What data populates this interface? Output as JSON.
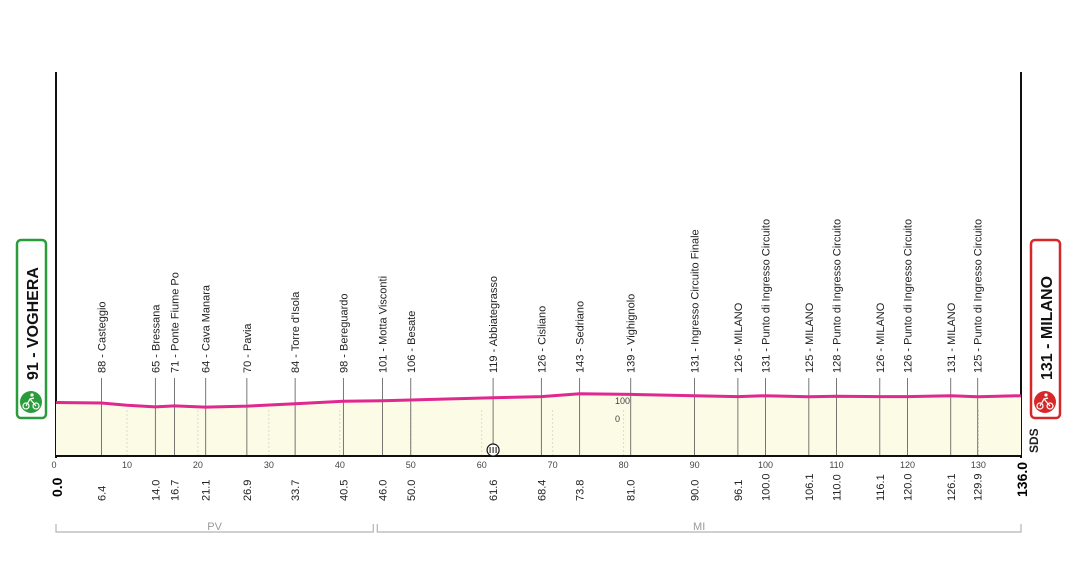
{
  "colors": {
    "profile_line": "#e0288f",
    "profile_fill": "#fbfbe6",
    "start_badge": "#2a9d3a",
    "finish_badge": "#d62828"
  },
  "start": {
    "label": "91 - VOGHERA",
    "icon": "cyclist-icon"
  },
  "finish": {
    "label": "131 - MILANO",
    "icon": "cyclist-icon"
  },
  "logo": "SDS",
  "alt_labels": {
    "upper": "100",
    "lower": "0"
  },
  "provinces": [
    {
      "name": "PV",
      "from_km": 0,
      "to_km": 45
    },
    {
      "name": "MI",
      "from_km": 45,
      "to_km": 136
    }
  ],
  "chart_data": {
    "type": "area",
    "title": "",
    "xlabel": "",
    "ylabel": "",
    "xlim": [
      0,
      136
    ],
    "x_ticks": [
      10,
      20,
      30,
      40,
      50,
      60,
      70,
      80,
      90,
      100,
      110,
      120,
      130
    ],
    "x_start_label": "0.0",
    "x_end_label": "136.0",
    "series": [
      {
        "x": [
          0,
          6.4,
          10,
          14.0,
          16.7,
          21.1,
          26.9,
          33.7,
          40.5,
          46.0,
          50.0,
          55,
          61.6,
          68.4,
          73.8,
          81.0,
          90.0,
          96.1,
          100.0,
          106.1,
          110.0,
          116.1,
          120.0,
          126.1,
          129.9,
          136.0
        ],
        "y": [
          91,
          88,
          75,
          65,
          71,
          64,
          70,
          84,
          98,
          101,
          106,
          112,
          119,
          126,
          143,
          139,
          131,
          126,
          131,
          125,
          128,
          126,
          126,
          131,
          125,
          131
        ]
      }
    ],
    "waypoints": [
      {
        "km": "6.4",
        "label": "88 - Casteggio"
      },
      {
        "km": "14.0",
        "label": "65 - Bressana"
      },
      {
        "km": "16.7",
        "label": "71 - Ponte Fiume Po"
      },
      {
        "km": "21.1",
        "label": "64 - Cava Manara"
      },
      {
        "km": "26.9",
        "label": "70 - Pavia"
      },
      {
        "km": "33.7",
        "label": "84 - Torre d'Isola"
      },
      {
        "km": "40.5",
        "label": "98 - Bereguardo"
      },
      {
        "km": "46.0",
        "label": "101 - Motta Visconti"
      },
      {
        "km": "50.0",
        "label": "106 - Besate"
      },
      {
        "km": "61.6",
        "label": "119 - Abbiategrasso"
      },
      {
        "km": "68.4",
        "label": "126 - Cisliano"
      },
      {
        "km": "73.8",
        "label": "143 - Sedriano"
      },
      {
        "km": "81.0",
        "label": "139 - Vighignolo"
      },
      {
        "km": "90.0",
        "label": "131 - Ingresso Circuito Finale"
      },
      {
        "km": "96.1",
        "label": "126 - MILANO"
      },
      {
        "km": "100.0",
        "label": "131 - Punto di Ingresso Circuito"
      },
      {
        "km": "106.1",
        "label": "125 - MILANO"
      },
      {
        "km": "110.0",
        "label": "128 - Punto di Ingresso Circuito"
      },
      {
        "km": "116.1",
        "label": "126 - MILANO"
      },
      {
        "km": "120.0",
        "label": "126 - Punto di Ingresso Circuito"
      },
      {
        "km": "126.1",
        "label": "131 - MILANO"
      },
      {
        "km": "129.9",
        "label": "125 - Punto di Ingresso Circuito"
      }
    ],
    "sprint_km": 61.6,
    "grid": false,
    "legend": "none"
  }
}
